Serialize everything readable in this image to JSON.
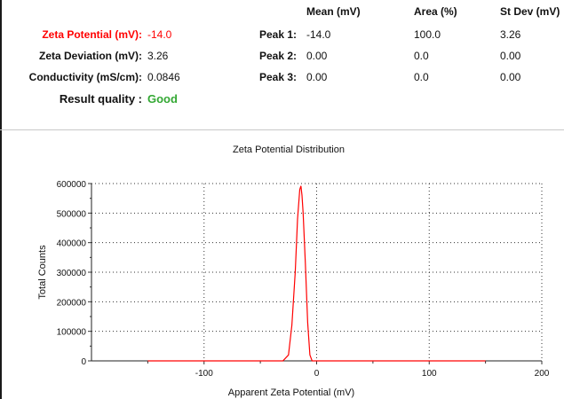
{
  "summary": {
    "headers": {
      "mean": "Mean (mV)",
      "area": "Area (%)",
      "stdev": "St Dev (mV)"
    },
    "zeta_potential": {
      "label": "Zeta Potential (mV):",
      "value": "-14.0",
      "color": "#ff0000"
    },
    "zeta_deviation": {
      "label": "Zeta Deviation (mV):",
      "value": "3.26"
    },
    "conductivity": {
      "label": "Conductivity (mS/cm):",
      "value": "0.0846"
    },
    "result_quality": {
      "label": "Result quality :",
      "value": "Good",
      "color": "#33a833"
    },
    "peaks": [
      {
        "label": "Peak 1:",
        "mean": "-14.0",
        "area": "100.0",
        "stdev": "3.26"
      },
      {
        "label": "Peak 2:",
        "mean": "0.00",
        "area": "0.0",
        "stdev": "0.00"
      },
      {
        "label": "Peak 3:",
        "mean": "0.00",
        "area": "0.0",
        "stdev": "0.00"
      }
    ]
  },
  "chart_data": {
    "type": "line",
    "title": "Zeta Potential Distribution",
    "xlabel": "Apparent Zeta Potential (mV)",
    "ylabel": "Total Counts",
    "xlim": [
      -200,
      200
    ],
    "ylim": [
      0,
      600000
    ],
    "x_ticks": [
      "-100",
      "0",
      "100",
      "200"
    ],
    "x_tick_values": [
      -100,
      0,
      100,
      200
    ],
    "y_ticks": [
      "0",
      "100000",
      "200000",
      "300000",
      "400000",
      "500000",
      "600000"
    ],
    "y_tick_values": [
      0,
      100000,
      200000,
      300000,
      400000,
      500000,
      600000
    ],
    "grid": true,
    "series": [
      {
        "color": "#ff0000",
        "x": [
          -150,
          -30,
          -25,
          -22,
          -19,
          -17,
          -15,
          -14,
          -13,
          -12,
          -10,
          -8,
          -6,
          -4,
          -2,
          150
        ],
        "y": [
          0,
          0,
          20000,
          120000,
          300000,
          480000,
          580000,
          592000,
          560000,
          500000,
          330000,
          130000,
          20000,
          0,
          0,
          0
        ]
      }
    ]
  }
}
